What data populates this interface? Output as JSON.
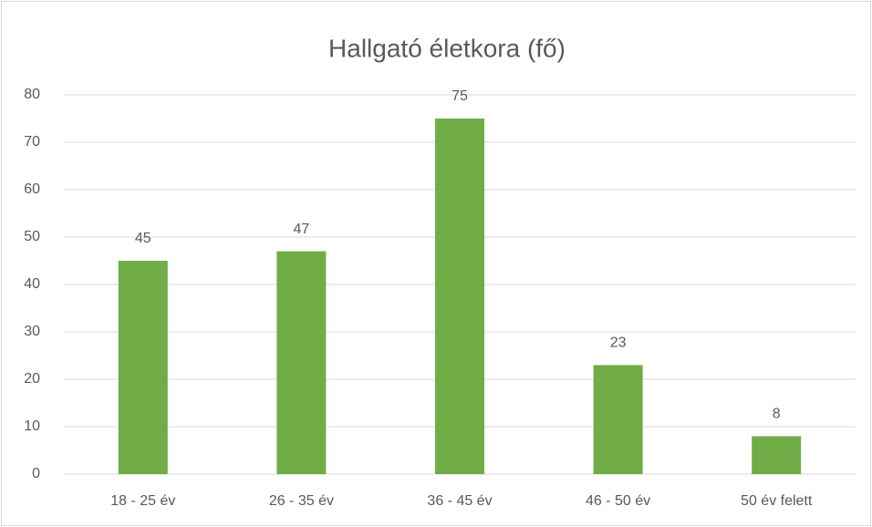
{
  "chart_data": {
    "type": "bar",
    "title": "Hallgató életkora (fő)",
    "categories": [
      "18 - 25 év",
      "26 - 35 év",
      "36 - 45 év",
      "46 - 50 év",
      "50 év felett"
    ],
    "values": [
      45,
      47,
      75,
      23,
      8
    ],
    "color": "#70ad47",
    "ylim": [
      0,
      80
    ],
    "yticks": [
      0,
      10,
      20,
      30,
      40,
      50,
      60,
      70,
      80
    ],
    "grid": true,
    "data_labels": true
  }
}
